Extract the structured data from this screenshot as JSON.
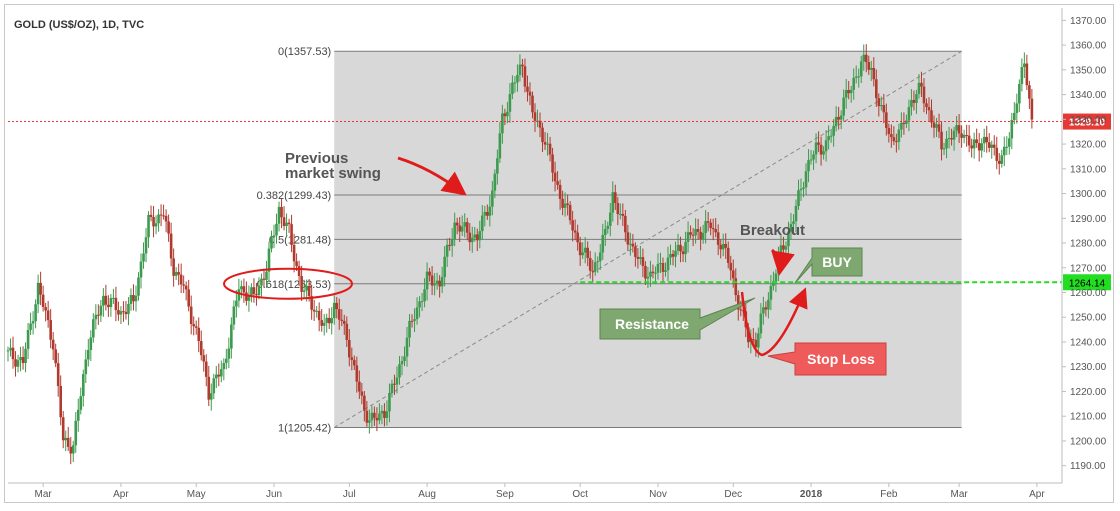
{
  "chart_data": {
    "type": "candlestick",
    "title": "GOLD (US$/OZ), 1D, TVC",
    "ylim": [
      1183,
      1375
    ],
    "y_ticks": [
      1190,
      1200,
      1210,
      1220,
      1230,
      1240,
      1250,
      1260,
      1270,
      1280,
      1290,
      1300,
      1310,
      1320,
      1330,
      1340,
      1350,
      1360,
      1370
    ],
    "x_ticks": [
      {
        "label": "Mar",
        "t": 14
      },
      {
        "label": "Apr",
        "t": 45
      },
      {
        "label": "May",
        "t": 75
      },
      {
        "label": "Jun",
        "t": 106
      },
      {
        "label": "Jul",
        "t": 136
      },
      {
        "label": "Aug",
        "t": 167
      },
      {
        "label": "Sep",
        "t": 198
      },
      {
        "label": "Oct",
        "t": 228
      },
      {
        "label": "Nov",
        "t": 259
      },
      {
        "label": "Dec",
        "t": 289
      },
      {
        "label": "2018",
        "t": 320,
        "bold": true
      },
      {
        "label": "Feb",
        "t": 351
      },
      {
        "label": "Mar",
        "t": 379
      },
      {
        "label": "Apr",
        "t": 410
      }
    ],
    "x_range": [
      0,
      420
    ],
    "up_color": "#3d9a4e",
    "down_color": "#b03a2e",
    "anchors": [
      [
        0,
        1235
      ],
      [
        6,
        1232
      ],
      [
        12,
        1262
      ],
      [
        18,
        1240
      ],
      [
        22,
        1200
      ],
      [
        26,
        1198
      ],
      [
        32,
        1240
      ],
      [
        38,
        1258
      ],
      [
        45,
        1252
      ],
      [
        50,
        1256
      ],
      [
        56,
        1288
      ],
      [
        62,
        1292
      ],
      [
        66,
        1270
      ],
      [
        70,
        1262
      ],
      [
        76,
        1240
      ],
      [
        80,
        1220
      ],
      [
        86,
        1230
      ],
      [
        92,
        1262
      ],
      [
        98,
        1258
      ],
      [
        103,
        1270
      ],
      [
        108,
        1294
      ],
      [
        112,
        1284
      ],
      [
        117,
        1262
      ],
      [
        121,
        1256
      ],
      [
        126,
        1245
      ],
      [
        130,
        1255
      ],
      [
        135,
        1242
      ],
      [
        139,
        1224
      ],
      [
        142,
        1212
      ],
      [
        146,
        1208
      ],
      [
        150,
        1212
      ],
      [
        155,
        1226
      ],
      [
        160,
        1245
      ],
      [
        167,
        1265
      ],
      [
        172,
        1264
      ],
      [
        178,
        1288
      ],
      [
        183,
        1284
      ],
      [
        187,
        1282
      ],
      [
        193,
        1300
      ],
      [
        197,
        1330
      ],
      [
        201,
        1343
      ],
      [
        205,
        1352
      ],
      [
        209,
        1332
      ],
      [
        214,
        1322
      ],
      [
        218,
        1305
      ],
      [
        223,
        1292
      ],
      [
        228,
        1278
      ],
      [
        233,
        1269
      ],
      [
        238,
        1283
      ],
      [
        241,
        1300
      ],
      [
        244,
        1290
      ],
      [
        248,
        1280
      ],
      [
        252,
        1271
      ],
      [
        256,
        1267
      ],
      [
        260,
        1270
      ],
      [
        264,
        1274
      ],
      [
        268,
        1278
      ],
      [
        272,
        1283
      ],
      [
        276,
        1285
      ],
      [
        280,
        1287
      ],
      [
        284,
        1280
      ],
      [
        288,
        1270
      ],
      [
        290,
        1260
      ],
      [
        292,
        1252
      ],
      [
        295,
        1242
      ],
      [
        298,
        1240
      ],
      [
        301,
        1252
      ],
      [
        304,
        1262
      ],
      [
        308,
        1276
      ],
      [
        313,
        1290
      ],
      [
        318,
        1310
      ],
      [
        322,
        1318
      ],
      [
        326,
        1320
      ],
      [
        329,
        1326
      ],
      [
        333,
        1338
      ],
      [
        336,
        1342
      ],
      [
        340,
        1354
      ],
      [
        344,
        1350
      ],
      [
        348,
        1333
      ],
      [
        352,
        1322
      ],
      [
        356,
        1325
      ],
      [
        360,
        1338
      ],
      [
        364,
        1342
      ],
      [
        368,
        1330
      ],
      [
        372,
        1320
      ],
      [
        376,
        1323
      ],
      [
        380,
        1326
      ],
      [
        384,
        1318
      ],
      [
        388,
        1322
      ],
      [
        392,
        1318
      ],
      [
        396,
        1314
      ],
      [
        399,
        1322
      ],
      [
        402,
        1340
      ],
      [
        405,
        1352
      ],
      [
        408,
        1330
      ]
    ],
    "current_price": {
      "value": 1329.1,
      "label": "1329.10",
      "color": "#e53935"
    },
    "resistance_level": {
      "value": 1264.14,
      "label": "1264.14",
      "color": "#22dd22",
      "t_start": 228
    },
    "fib_box": {
      "t_start": 130,
      "t_end": 380,
      "high": 1357.53,
      "low": 1205.42
    },
    "fib_levels": [
      {
        "ratio": "0",
        "value": 1357.53,
        "label": "0(1357.53)"
      },
      {
        "ratio": "0.382",
        "value": 1299.43,
        "label": "0.382(1299.43)"
      },
      {
        "ratio": "0.5",
        "value": 1281.48,
        "label": "0.5(1281.48)"
      },
      {
        "ratio": "0.618",
        "value": 1263.53,
        "label": "0.618(1263.53)"
      },
      {
        "ratio": "1",
        "value": 1205.42,
        "label": "1(1205.42)"
      }
    ],
    "trendline": {
      "from": [
        130,
        1205.42
      ],
      "to": [
        380,
        1357.53
      ]
    },
    "annotations": {
      "swing_line1": "Previous",
      "swing_line2": "market swing",
      "breakout": "Breakout",
      "buy": "BUY",
      "resistance": "Resistance",
      "stop_loss": "Stop Loss"
    },
    "colors": {
      "fib_box": "#d8d8d8",
      "buy_box": "#7fa870",
      "resistance_box": "#7fa870",
      "stop_box": "#ef5a5a",
      "arrow": "#e01b1b"
    }
  }
}
